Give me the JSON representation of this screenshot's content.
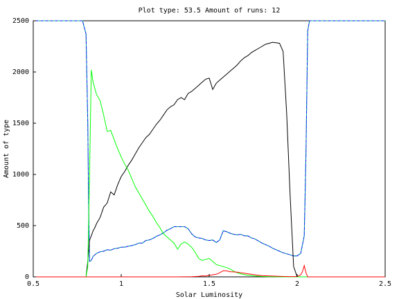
{
  "chart_data": {
    "type": "line",
    "title": "Plot type: 53.5 Amount of runs: 12",
    "xlabel": "Solar Luminosity",
    "ylabel": "Amount of type",
    "xlim": [
      0.5,
      2.5
    ],
    "ylim": [
      0,
      2500
    ],
    "xticks": [
      0.5,
      1,
      1.5,
      2,
      2.5
    ],
    "xtick_labels": [
      "0.5",
      "1",
      "1.5",
      "2",
      "2.5"
    ],
    "yticks": [
      0,
      500,
      1000,
      1500,
      2000,
      2500
    ],
    "ytick_labels": [
      "0",
      "500",
      "1000",
      "1500",
      "2000",
      "2500"
    ],
    "grid": false,
    "series": [
      {
        "color": "#0000ff",
        "dashed_color": "#00a0a0",
        "x": [
          0.5,
          0.78,
          0.8,
          0.81,
          0.815,
          0.82,
          0.83,
          0.84,
          0.86,
          0.88,
          0.9,
          0.92,
          0.94,
          0.96,
          0.98,
          1.0,
          1.02,
          1.04,
          1.06,
          1.08,
          1.1,
          1.12,
          1.14,
          1.16,
          1.18,
          1.2,
          1.22,
          1.24,
          1.26,
          1.28,
          1.3,
          1.32,
          1.34,
          1.36,
          1.38,
          1.4,
          1.42,
          1.44,
          1.46,
          1.48,
          1.5,
          1.52,
          1.54,
          1.56,
          1.58,
          1.6,
          1.62,
          1.64,
          1.66,
          1.68,
          1.7,
          1.72,
          1.74,
          1.76,
          1.78,
          1.8,
          1.82,
          1.84,
          1.86,
          1.88,
          1.9,
          1.92,
          1.94,
          1.96,
          1.98,
          2.0,
          2.02,
          2.04,
          2.05,
          2.06,
          2.07,
          2.5
        ],
        "y": [
          2500,
          2500,
          2370,
          1500,
          700,
          150,
          160,
          200,
          230,
          245,
          250,
          265,
          260,
          275,
          280,
          290,
          290,
          300,
          305,
          315,
          330,
          330,
          355,
          360,
          375,
          395,
          410,
          430,
          455,
          470,
          490,
          490,
          490,
          490,
          470,
          420,
          390,
          380,
          375,
          360,
          355,
          360,
          335,
          360,
          450,
          440,
          425,
          415,
          410,
          415,
          400,
          400,
          380,
          370,
          350,
          330,
          315,
          300,
          280,
          265,
          250,
          235,
          225,
          215,
          205,
          205,
          230,
          400,
          1200,
          2400,
          2500,
          2500
        ]
      },
      {
        "color": "#000000",
        "x": [
          0.8,
          0.81,
          0.82,
          0.83,
          0.84,
          0.85,
          0.86,
          0.88,
          0.9,
          0.92,
          0.94,
          0.96,
          0.98,
          1.0,
          1.02,
          1.04,
          1.06,
          1.08,
          1.1,
          1.12,
          1.14,
          1.16,
          1.18,
          1.2,
          1.22,
          1.24,
          1.26,
          1.28,
          1.3,
          1.32,
          1.34,
          1.36,
          1.38,
          1.4,
          1.42,
          1.44,
          1.46,
          1.48,
          1.5,
          1.52,
          1.54,
          1.56,
          1.58,
          1.6,
          1.62,
          1.64,
          1.66,
          1.68,
          1.7,
          1.72,
          1.74,
          1.76,
          1.78,
          1.8,
          1.82,
          1.84,
          1.86,
          1.88,
          1.9,
          1.92,
          1.94,
          1.96,
          1.98,
          2.0,
          2.02,
          2.03,
          2.04,
          2.05
        ],
        "y": [
          0,
          150,
          360,
          400,
          450,
          480,
          520,
          580,
          680,
          720,
          830,
          800,
          900,
          980,
          1030,
          1090,
          1140,
          1200,
          1260,
          1310,
          1360,
          1390,
          1440,
          1490,
          1530,
          1580,
          1630,
          1660,
          1680,
          1730,
          1750,
          1730,
          1790,
          1810,
          1840,
          1870,
          1900,
          1930,
          1940,
          1830,
          1890,
          1920,
          1950,
          1980,
          2010,
          2040,
          2070,
          2110,
          2140,
          2160,
          2190,
          2210,
          2230,
          2250,
          2270,
          2280,
          2290,
          2285,
          2280,
          2200,
          1600,
          800,
          100,
          0,
          0,
          0,
          0,
          0
        ]
      },
      {
        "color": "#00ff00",
        "x": [
          0.8,
          0.81,
          0.82,
          0.83,
          0.84,
          0.86,
          0.88,
          0.9,
          0.92,
          0.94,
          0.96,
          0.98,
          1.0,
          1.02,
          1.04,
          1.06,
          1.08,
          1.1,
          1.12,
          1.14,
          1.16,
          1.18,
          1.2,
          1.22,
          1.24,
          1.26,
          1.28,
          1.3,
          1.32,
          1.34,
          1.36,
          1.38,
          1.4,
          1.42,
          1.44,
          1.46,
          1.48,
          1.5,
          1.52,
          1.54,
          1.56,
          1.58,
          1.6,
          1.62,
          1.64,
          1.66,
          1.68,
          1.7,
          1.72,
          1.74,
          1.76,
          1.78,
          1.8,
          1.82,
          1.84,
          1.86,
          1.88,
          1.9,
          1.92,
          1.94,
          1.96,
          1.98,
          2.0,
          2.02,
          2.04,
          2.06
        ],
        "y": [
          0,
          100,
          1000,
          2020,
          1900,
          1780,
          1720,
          1580,
          1420,
          1430,
          1340,
          1250,
          1170,
          1100,
          1040,
          960,
          880,
          820,
          760,
          700,
          640,
          590,
          530,
          480,
          420,
          390,
          360,
          330,
          270,
          320,
          340,
          320,
          290,
          240,
          180,
          160,
          170,
          180,
          150,
          120,
          110,
          100,
          90,
          75,
          55,
          40,
          30,
          22,
          16,
          12,
          8,
          6,
          4,
          3,
          2,
          2,
          1,
          1,
          0,
          0,
          0,
          0,
          0,
          0,
          0,
          0
        ]
      },
      {
        "color": "#ff0000",
        "x": [
          0.5,
          1.3,
          1.4,
          1.44,
          1.46,
          1.48,
          1.5,
          1.52,
          1.54,
          1.56,
          1.58,
          1.6,
          1.62,
          1.64,
          1.66,
          1.68,
          1.7,
          1.72,
          1.74,
          1.76,
          1.78,
          1.8,
          1.85,
          1.9,
          1.95,
          2.0,
          2.02,
          2.03,
          2.04,
          2.05,
          2.06,
          2.5
        ],
        "y": [
          0,
          0,
          2,
          5,
          10,
          8,
          15,
          20,
          25,
          40,
          60,
          58,
          50,
          48,
          45,
          40,
          35,
          30,
          25,
          20,
          15,
          12,
          8,
          5,
          3,
          3,
          20,
          50,
          110,
          40,
          0,
          0
        ]
      }
    ]
  }
}
